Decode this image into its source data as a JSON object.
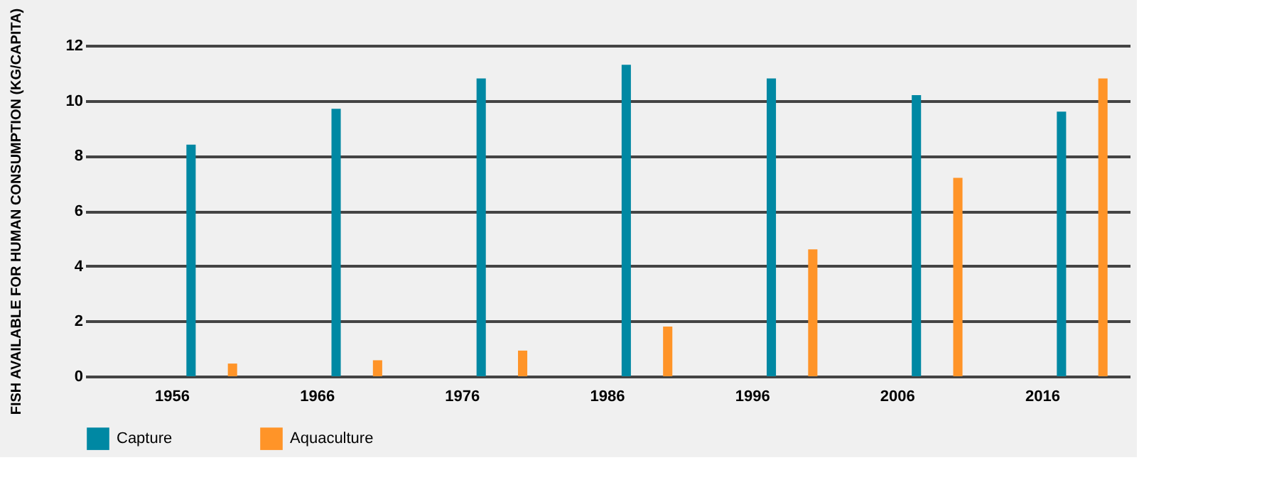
{
  "chart_data": {
    "type": "bar",
    "ylabel": "FISH AVAILABLE FOR HUMAN CONSUMPTION (KG/CAPITA)",
    "categories": [
      "1956",
      "1966",
      "1976",
      "1986",
      "1996",
      "2006",
      "2016"
    ],
    "series": [
      {
        "name": "Capture",
        "color": "#0088a3",
        "values": [
          8.4,
          9.7,
          10.8,
          11.3,
          10.8,
          10.2,
          9.6
        ]
      },
      {
        "name": "Aquaculture",
        "color": "#ff9428",
        "values": [
          0.46,
          0.58,
          0.93,
          1.8,
          4.6,
          7.2,
          10.8
        ]
      }
    ],
    "ylim": [
      0,
      12
    ],
    "yticks": [
      0,
      2,
      4,
      6,
      8,
      10,
      12
    ],
    "grid": "y",
    "legend": "bottom left"
  }
}
